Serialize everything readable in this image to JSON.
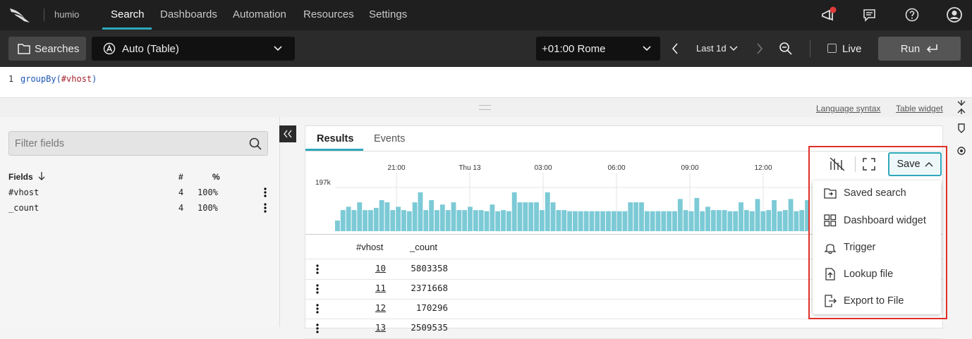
{
  "nav": {
    "brand": "humio",
    "tabs": [
      "Search",
      "Dashboards",
      "Automation",
      "Resources",
      "Settings"
    ]
  },
  "toolbar": {
    "searches": "Searches",
    "widget": "Auto (Table)",
    "timezone": "+01:00 Rome",
    "range": "Last 1d",
    "live": "Live",
    "run": "Run"
  },
  "query": {
    "line_number": 1,
    "tokens": [
      "groupBy(",
      "#vhost",
      ")"
    ]
  },
  "links": [
    "Language syntax",
    "Table widget"
  ],
  "fields_panel": {
    "filter_placeholder": "Filter fields",
    "headers": [
      "Fields",
      "#",
      "%"
    ],
    "rows": [
      [
        "#vhost",
        4,
        "100%"
      ],
      [
        "_count",
        4,
        "100%"
      ]
    ]
  },
  "results": {
    "tabs": [
      "Results",
      "Events"
    ],
    "histogram": {
      "type": "bar",
      "color": "#7ccad6",
      "ylim": [
        0,
        197000
      ],
      "yticks": [
        {
          "value": 197000,
          "label": "197k"
        }
      ],
      "time_labels": [
        "21:00",
        "Thu 13",
        "03:00",
        "06:00",
        "09:00",
        "12:00"
      ],
      "values": [
        48000,
        95000,
        110000,
        95000,
        130000,
        95000,
        95000,
        105000,
        140000,
        130000,
        95000,
        110000,
        95000,
        90000,
        130000,
        175000,
        95000,
        140000,
        95000,
        120000,
        95000,
        130000,
        95000,
        95000,
        110000,
        95000,
        95000,
        90000,
        120000,
        90000,
        95000,
        90000,
        175000,
        130000,
        130000,
        130000,
        130000,
        95000,
        175000,
        130000,
        95000,
        95000,
        90000,
        90000,
        90000,
        90000,
        90000,
        90000,
        90000,
        90000,
        90000,
        90000,
        90000,
        130000,
        130000,
        130000,
        90000,
        90000,
        90000,
        90000,
        90000,
        90000,
        145000,
        95000,
        90000,
        150000,
        90000,
        110000,
        95000,
        95000,
        95000,
        90000,
        90000,
        130000,
        95000,
        90000,
        145000,
        90000,
        95000,
        140000,
        90000,
        95000,
        145000,
        90000,
        95000,
        140000
      ]
    },
    "table": {
      "headers": [
        "#vhost",
        "_count"
      ],
      "rows": [
        [
          10,
          5803358
        ],
        [
          11,
          2371668
        ],
        [
          12,
          170296
        ],
        [
          13,
          2509535
        ]
      ]
    }
  },
  "save": {
    "button": "Save",
    "menu": [
      "Saved search",
      "Dashboard widget",
      "Trigger",
      "Lookup file",
      "Export to File"
    ]
  }
}
